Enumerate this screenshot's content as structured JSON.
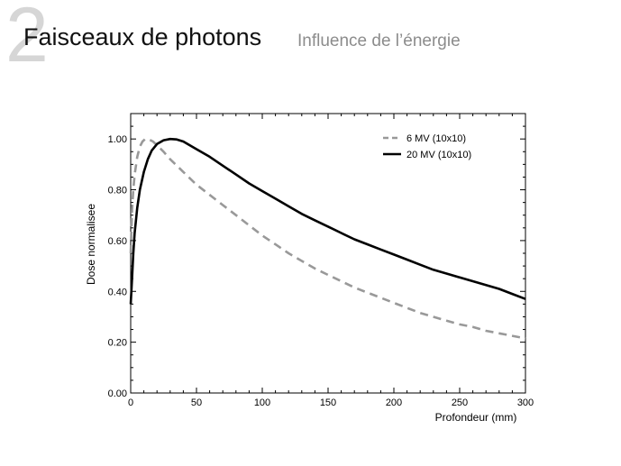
{
  "slide": {
    "number": "2",
    "title": "Faisceaux de photons",
    "subtitle": "Influence de l’énergie"
  },
  "chart_data": {
    "type": "line",
    "title": "",
    "xlabel": "Profondeur (mm)",
    "ylabel": "Dose normalisee",
    "xlim": [
      0,
      300
    ],
    "ylim": [
      0,
      1.1
    ],
    "xticks": [
      0,
      50,
      100,
      150,
      200,
      250,
      300
    ],
    "yticks": [
      0.0,
      0.2,
      0.4,
      0.6,
      0.8,
      1.0
    ],
    "xtick_labels": [
      "0",
      "50",
      "100",
      "150",
      "200",
      "250",
      "300"
    ],
    "ytick_labels": [
      "0.00",
      "0.20",
      "0.40",
      "0.60",
      "0.80",
      "1.00"
    ],
    "grid": false,
    "legend_position": "top-right",
    "series": [
      {
        "name": "6 MV (10x10)",
        "color": "#999999",
        "style": "dashed",
        "x": [
          0,
          1,
          2,
          3,
          5,
          7,
          9,
          11,
          13,
          15,
          17,
          20,
          25,
          30,
          40,
          50,
          60,
          70,
          80,
          90,
          100,
          110,
          120,
          130,
          140,
          150,
          160,
          170,
          180,
          190,
          200,
          210,
          220,
          230,
          240,
          250,
          260,
          270,
          280,
          290,
          300
        ],
        "y": [
          0.55,
          0.72,
          0.8,
          0.86,
          0.93,
          0.97,
          0.99,
          1.0,
          1.0,
          0.995,
          0.99,
          0.975,
          0.95,
          0.92,
          0.87,
          0.82,
          0.78,
          0.74,
          0.7,
          0.66,
          0.62,
          0.585,
          0.55,
          0.52,
          0.49,
          0.465,
          0.44,
          0.415,
          0.395,
          0.375,
          0.355,
          0.335,
          0.315,
          0.3,
          0.285,
          0.27,
          0.26,
          0.245,
          0.235,
          0.225,
          0.215
        ]
      },
      {
        "name": "20 MV (10x10)",
        "color": "#000000",
        "style": "solid",
        "x": [
          0,
          1,
          2,
          3,
          5,
          7,
          10,
          13,
          16,
          20,
          25,
          30,
          35,
          40,
          50,
          60,
          70,
          80,
          90,
          100,
          110,
          120,
          130,
          140,
          150,
          160,
          170,
          180,
          190,
          200,
          210,
          220,
          230,
          240,
          250,
          260,
          270,
          280,
          290,
          300
        ],
        "y": [
          0.35,
          0.45,
          0.55,
          0.63,
          0.73,
          0.8,
          0.87,
          0.92,
          0.955,
          0.98,
          0.995,
          1.0,
          0.998,
          0.99,
          0.96,
          0.93,
          0.895,
          0.86,
          0.825,
          0.795,
          0.765,
          0.735,
          0.705,
          0.68,
          0.655,
          0.63,
          0.605,
          0.585,
          0.565,
          0.545,
          0.525,
          0.505,
          0.485,
          0.47,
          0.455,
          0.44,
          0.425,
          0.41,
          0.39,
          0.37
        ]
      }
    ]
  }
}
